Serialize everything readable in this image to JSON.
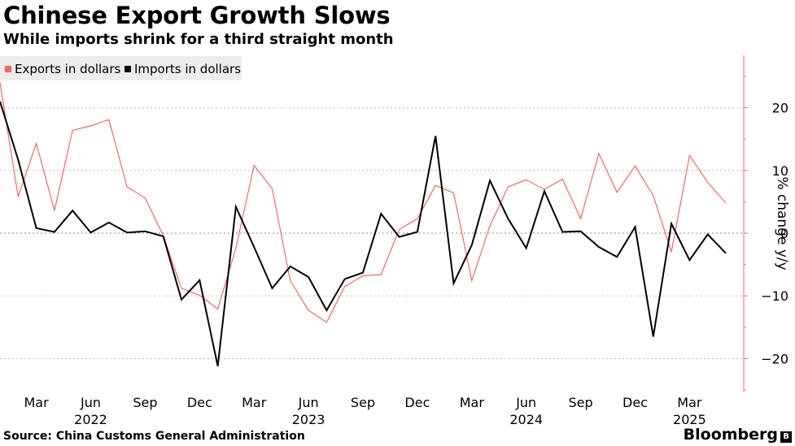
{
  "chart_data": {
    "type": "line",
    "title": "Chinese Export Growth Slows",
    "subtitle": "While imports shrink for a third straight month",
    "ylabel": "% change y/y",
    "xlabel": "",
    "ylim": [
      -25,
      28
    ],
    "yticks": [
      20,
      10,
      0,
      -10,
      -20
    ],
    "y_axis_position": "right",
    "grid": "horizontal dotted",
    "legend_placement": "top-left",
    "x_tick_labels": [
      {
        "label": "Mar",
        "year": "",
        "index": 2
      },
      {
        "label": "Jun",
        "year": "2022",
        "index": 5
      },
      {
        "label": "Sep",
        "year": "",
        "index": 8
      },
      {
        "label": "Dec",
        "year": "",
        "index": 11
      },
      {
        "label": "Mar",
        "year": "",
        "index": 14
      },
      {
        "label": "Jun",
        "year": "2023",
        "index": 17
      },
      {
        "label": "Sep",
        "year": "",
        "index": 20
      },
      {
        "label": "Dec",
        "year": "",
        "index": 23
      },
      {
        "label": "Mar",
        "year": "",
        "index": 26
      },
      {
        "label": "Jun",
        "year": "2024",
        "index": 29
      },
      {
        "label": "Sep",
        "year": "",
        "index": 32
      },
      {
        "label": "Dec",
        "year": "",
        "index": 35
      },
      {
        "label": "Mar",
        "year": "2025",
        "index": 38
      }
    ],
    "series": [
      {
        "name": "Exports in dollars",
        "color": "#f4685e",
        "values": [
          24,
          5.8,
          14.3,
          3.6,
          16.4,
          17.1,
          18.1,
          7.4,
          5.6,
          -0.4,
          -8.8,
          -9.9,
          -12.1,
          -2.4,
          10.8,
          7.1,
          -7.6,
          -12.3,
          -14.2,
          -8.5,
          -6.8,
          -6.6,
          0.6,
          2.3,
          7.6,
          6.4,
          -7.6,
          1.2,
          7.4,
          8.5,
          7.0,
          8.6,
          2.3,
          12.7,
          6.5,
          10.7,
          6.0,
          -3.0,
          12.4,
          8.1,
          4.8
        ]
      },
      {
        "name": "Imports in dollars",
        "color": "#000000",
        "values": [
          21.0,
          11.7,
          0.8,
          0.2,
          3.6,
          0.1,
          1.7,
          0.1,
          0.3,
          -0.5,
          -10.6,
          -7.5,
          -21.2,
          4.2,
          -2.2,
          -8.8,
          -5.3,
          -7.0,
          -12.3,
          -7.3,
          -6.3,
          3.1,
          -0.6,
          0.2,
          15.5,
          -8.0,
          -1.9,
          8.4,
          2.3,
          -2.4,
          6.7,
          0.2,
          0.3,
          -2.2,
          -3.8,
          1.0,
          -16.5,
          1.5,
          -4.3,
          -0.2,
          -3.2
        ]
      }
    ]
  },
  "footer": {
    "source": "Source:  China Customs General Administration",
    "brand": "Bloomberg",
    "brand_mark": "B"
  }
}
